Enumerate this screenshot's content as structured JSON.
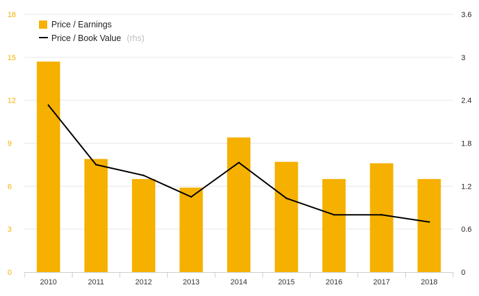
{
  "chart_data": {
    "type": "bar",
    "categories": [
      "2010",
      "2011",
      "2012",
      "2013",
      "2014",
      "2015",
      "2016",
      "2017",
      "2018"
    ],
    "series": [
      {
        "name": "Price / Earnings",
        "type": "bar",
        "axis": "left",
        "color": "#F5B000",
        "values": [
          14.7,
          7.9,
          6.5,
          5.9,
          9.4,
          7.7,
          6.5,
          7.6,
          6.5
        ]
      },
      {
        "name": "Price / Book Value",
        "name_suffix": "(rhs)",
        "type": "line",
        "axis": "right",
        "color": "#000000",
        "values": [
          2.33,
          1.5,
          1.35,
          1.05,
          1.53,
          1.03,
          0.8,
          0.8,
          0.7
        ]
      }
    ],
    "y_left": {
      "ylim": [
        0,
        18
      ],
      "ticks": [
        "0",
        "3",
        "6",
        "9",
        "12",
        "15",
        "18"
      ]
    },
    "y_right": {
      "ylim": [
        0,
        3.6
      ],
      "ticks": [
        "0",
        "0.6",
        "1.2",
        "1.8",
        "2.4",
        "3",
        "3.6"
      ]
    },
    "grid": true,
    "legend_position": "top-left"
  }
}
